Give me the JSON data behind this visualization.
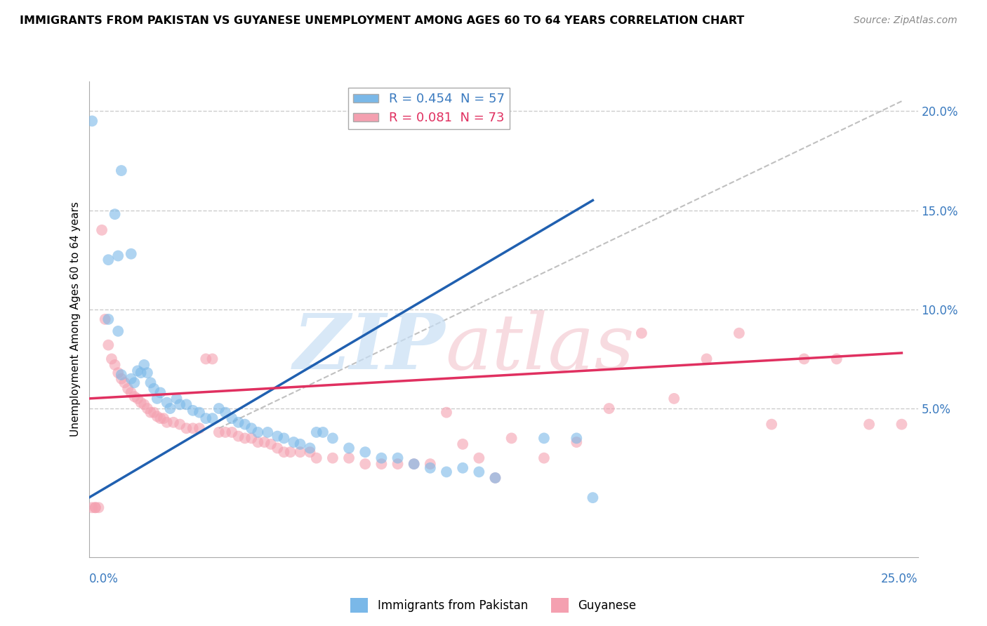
{
  "title": "IMMIGRANTS FROM PAKISTAN VS GUYANESE UNEMPLOYMENT AMONG AGES 60 TO 64 YEARS CORRELATION CHART",
  "source": "Source: ZipAtlas.com",
  "ylabel": "Unemployment Among Ages 60 to 64 years",
  "ylabel_right_ticks": [
    "20.0%",
    "15.0%",
    "10.0%",
    "5.0%"
  ],
  "ylabel_right_values": [
    0.2,
    0.15,
    0.1,
    0.05
  ],
  "xmin": 0.0,
  "xmax": 0.25,
  "ymin": -0.025,
  "ymax": 0.215,
  "blue_color": "#7ab8e8",
  "pink_color": "#f4a0b0",
  "blue_line_color": "#2060b0",
  "pink_line_color": "#e03060",
  "diagonal_color": "#c0c0c0",
  "blue_scatter": [
    [
      0.001,
      0.195
    ],
    [
      0.01,
      0.17
    ],
    [
      0.008,
      0.148
    ],
    [
      0.006,
      0.125
    ],
    [
      0.009,
      0.127
    ],
    [
      0.006,
      0.095
    ],
    [
      0.009,
      0.089
    ],
    [
      0.01,
      0.067
    ],
    [
      0.013,
      0.128
    ],
    [
      0.015,
      0.069
    ],
    [
      0.016,
      0.068
    ],
    [
      0.013,
      0.065
    ],
    [
      0.014,
      0.063
    ],
    [
      0.017,
      0.072
    ],
    [
      0.018,
      0.068
    ],
    [
      0.019,
      0.063
    ],
    [
      0.02,
      0.06
    ],
    [
      0.021,
      0.055
    ],
    [
      0.022,
      0.058
    ],
    [
      0.024,
      0.053
    ],
    [
      0.025,
      0.05
    ],
    [
      0.027,
      0.055
    ],
    [
      0.028,
      0.052
    ],
    [
      0.03,
      0.052
    ],
    [
      0.032,
      0.049
    ],
    [
      0.034,
      0.048
    ],
    [
      0.036,
      0.045
    ],
    [
      0.038,
      0.045
    ],
    [
      0.04,
      0.05
    ],
    [
      0.042,
      0.048
    ],
    [
      0.044,
      0.045
    ],
    [
      0.046,
      0.043
    ],
    [
      0.048,
      0.042
    ],
    [
      0.05,
      0.04
    ],
    [
      0.052,
      0.038
    ],
    [
      0.055,
      0.038
    ],
    [
      0.058,
      0.036
    ],
    [
      0.06,
      0.035
    ],
    [
      0.063,
      0.033
    ],
    [
      0.065,
      0.032
    ],
    [
      0.068,
      0.03
    ],
    [
      0.07,
      0.038
    ],
    [
      0.072,
      0.038
    ],
    [
      0.075,
      0.035
    ],
    [
      0.08,
      0.03
    ],
    [
      0.085,
      0.028
    ],
    [
      0.09,
      0.025
    ],
    [
      0.095,
      0.025
    ],
    [
      0.1,
      0.022
    ],
    [
      0.105,
      0.02
    ],
    [
      0.11,
      0.018
    ],
    [
      0.115,
      0.02
    ],
    [
      0.12,
      0.018
    ],
    [
      0.125,
      0.015
    ],
    [
      0.14,
      0.035
    ],
    [
      0.15,
      0.035
    ],
    [
      0.155,
      0.005
    ]
  ],
  "pink_scatter": [
    [
      0.001,
      0.0
    ],
    [
      0.002,
      0.0
    ],
    [
      0.002,
      0.0
    ],
    [
      0.003,
      0.0
    ],
    [
      0.004,
      0.14
    ],
    [
      0.005,
      0.095
    ],
    [
      0.006,
      0.082
    ],
    [
      0.007,
      0.075
    ],
    [
      0.008,
      0.072
    ],
    [
      0.009,
      0.068
    ],
    [
      0.01,
      0.065
    ],
    [
      0.011,
      0.063
    ],
    [
      0.012,
      0.06
    ],
    [
      0.013,
      0.058
    ],
    [
      0.014,
      0.056
    ],
    [
      0.015,
      0.055
    ],
    [
      0.016,
      0.053
    ],
    [
      0.017,
      0.052
    ],
    [
      0.018,
      0.05
    ],
    [
      0.019,
      0.048
    ],
    [
      0.02,
      0.048
    ],
    [
      0.021,
      0.046
    ],
    [
      0.022,
      0.045
    ],
    [
      0.023,
      0.045
    ],
    [
      0.024,
      0.043
    ],
    [
      0.026,
      0.043
    ],
    [
      0.028,
      0.042
    ],
    [
      0.03,
      0.04
    ],
    [
      0.032,
      0.04
    ],
    [
      0.034,
      0.04
    ],
    [
      0.036,
      0.075
    ],
    [
      0.038,
      0.075
    ],
    [
      0.04,
      0.038
    ],
    [
      0.042,
      0.038
    ],
    [
      0.044,
      0.038
    ],
    [
      0.046,
      0.036
    ],
    [
      0.048,
      0.035
    ],
    [
      0.05,
      0.035
    ],
    [
      0.052,
      0.033
    ],
    [
      0.054,
      0.033
    ],
    [
      0.056,
      0.032
    ],
    [
      0.058,
      0.03
    ],
    [
      0.06,
      0.028
    ],
    [
      0.062,
      0.028
    ],
    [
      0.065,
      0.028
    ],
    [
      0.068,
      0.028
    ],
    [
      0.07,
      0.025
    ],
    [
      0.075,
      0.025
    ],
    [
      0.08,
      0.025
    ],
    [
      0.085,
      0.022
    ],
    [
      0.09,
      0.022
    ],
    [
      0.095,
      0.022
    ],
    [
      0.1,
      0.022
    ],
    [
      0.105,
      0.022
    ],
    [
      0.11,
      0.048
    ],
    [
      0.115,
      0.032
    ],
    [
      0.12,
      0.025
    ],
    [
      0.125,
      0.015
    ],
    [
      0.13,
      0.035
    ],
    [
      0.14,
      0.025
    ],
    [
      0.15,
      0.033
    ],
    [
      0.16,
      0.05
    ],
    [
      0.17,
      0.088
    ],
    [
      0.18,
      0.055
    ],
    [
      0.19,
      0.075
    ],
    [
      0.2,
      0.088
    ],
    [
      0.21,
      0.042
    ],
    [
      0.22,
      0.075
    ],
    [
      0.23,
      0.075
    ],
    [
      0.24,
      0.042
    ],
    [
      0.25,
      0.042
    ]
  ],
  "blue_line_x": [
    0.0,
    0.155
  ],
  "blue_line_y": [
    0.005,
    0.155
  ],
  "pink_line_x": [
    0.0,
    0.25
  ],
  "pink_line_y": [
    0.055,
    0.078
  ],
  "diag_line_x": [
    0.04,
    0.25
  ],
  "diag_line_y": [
    0.04,
    0.205
  ]
}
